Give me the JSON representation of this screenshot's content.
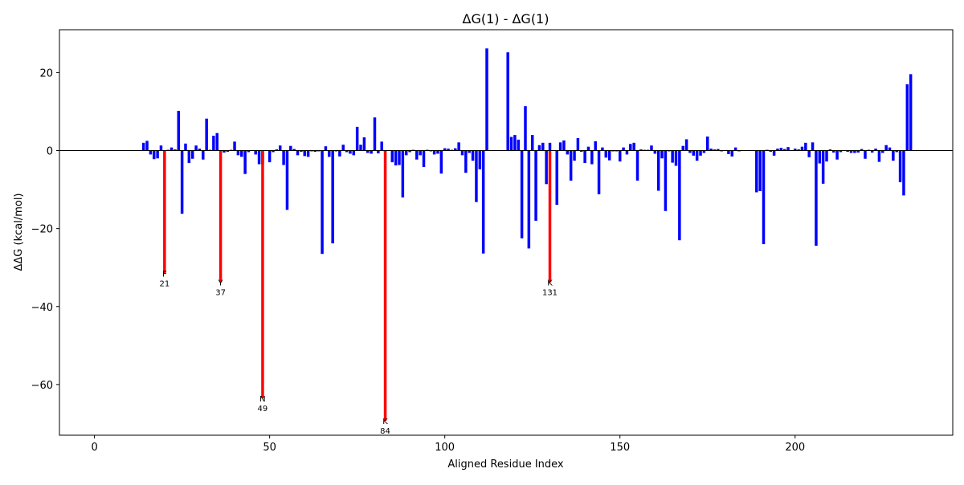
{
  "chart_data": {
    "type": "bar",
    "title": "ΔG(1) - ΔG(1)",
    "xlabel": "Aligned Residue Index",
    "ylabel": "ΔΔG (kcal/mol)",
    "xlim": [
      -10,
      245
    ],
    "ylim": [
      -73,
      31
    ],
    "xticks": [
      0,
      50,
      100,
      150,
      200
    ],
    "yticks": [
      -60,
      -40,
      -20,
      0,
      20
    ],
    "colors": {
      "default": "#0000ff",
      "highlight": "#ff0000",
      "zero_line": "#000000"
    },
    "series": [
      {
        "color": "#0000ff",
        "x": [
          14,
          15,
          16,
          17,
          18,
          19,
          21,
          22,
          23,
          24,
          25,
          26,
          27,
          28,
          29,
          30,
          31,
          32,
          33,
          34,
          35,
          37,
          38,
          39,
          40,
          41,
          42,
          43,
          44,
          45,
          46,
          47,
          48,
          50,
          51,
          52,
          53,
          54,
          55,
          56,
          57,
          58,
          59,
          60,
          61,
          62,
          63,
          64,
          65,
          66,
          67,
          68,
          69,
          70,
          71,
          72,
          73,
          74,
          75,
          76,
          77,
          78,
          79,
          80,
          81,
          82,
          83,
          85,
          86,
          87,
          88,
          89,
          90,
          91,
          92,
          93,
          94,
          95,
          96,
          97,
          98,
          99,
          100,
          101,
          102,
          103,
          104,
          105,
          106,
          107,
          108,
          109,
          110,
          111,
          112,
          118,
          119,
          120,
          121,
          122,
          123,
          124,
          125,
          126,
          127,
          128,
          129,
          130,
          132,
          133,
          134,
          135,
          136,
          137,
          138,
          139,
          140,
          141,
          142,
          143,
          144,
          145,
          146,
          147,
          148,
          149,
          150,
          151,
          152,
          153,
          154,
          155,
          156,
          157,
          158,
          159,
          160,
          161,
          162,
          163,
          164,
          165,
          166,
          167,
          168,
          169,
          170,
          171,
          172,
          173,
          174,
          175,
          176,
          177,
          178,
          179,
          180,
          181,
          182,
          183,
          184,
          185,
          189,
          190,
          191,
          192,
          193,
          194,
          195,
          196,
          197,
          198,
          199,
          200,
          201,
          202,
          203,
          204,
          205,
          206,
          207,
          208,
          209,
          210,
          211,
          212,
          213,
          214,
          215,
          216,
          217,
          218,
          219,
          220,
          221,
          222,
          223,
          224,
          225,
          226,
          227,
          228,
          229,
          230,
          231,
          232,
          233
        ],
        "y": [
          2,
          2.5,
          -1,
          -2.2,
          -2,
          1.3,
          0.2,
          0.8,
          0.3,
          10.2,
          -16.2,
          1.8,
          -3.2,
          -2.1,
          1.3,
          0.5,
          -2.3,
          8.2,
          0.2,
          3.8,
          4.5,
          -0.5,
          -0.3,
          0.2,
          2.3,
          -1.2,
          -1.6,
          -6,
          -0.4,
          0.1,
          -1,
          -3.5,
          -3.5,
          -3,
          -0.4,
          0.3,
          1.3,
          -3.7,
          -15.2,
          1.2,
          0.4,
          -1.2,
          -0.3,
          -1.4,
          -1.6,
          -0.2,
          -0.3,
          -0.2,
          -26.5,
          1.1,
          -1.6,
          -23.8,
          -0.2,
          -1.5,
          1.5,
          -0.4,
          -0.8,
          -1.2,
          6.1,
          1.5,
          3.4,
          -0.6,
          -0.8,
          8.5,
          -0.7,
          2.3,
          -0.4,
          -3,
          -3.8,
          -3.7,
          -12,
          -1.2,
          -0.4,
          0.2,
          -2.3,
          -1.2,
          -4.2,
          0.2,
          -0.2,
          -1,
          -0.8,
          -5.9,
          0.6,
          0.5,
          0.2,
          0.6,
          2.1,
          -1.2,
          -5.7,
          -0.6,
          -2.6,
          -13.2,
          -4.8,
          -26.4,
          26.2,
          25.2,
          3.5,
          4,
          2.8,
          -22.5,
          11.4,
          -25.1,
          4,
          -18,
          1.4,
          2,
          -8.6,
          2,
          -13.9,
          2.1,
          2.6,
          -1,
          -7.7,
          -2.6,
          3.2,
          -0.3,
          -3.2,
          1,
          -3.5,
          2.4,
          -11.2,
          0.8,
          -1.8,
          -2.5,
          -0.2,
          -0.2,
          -2.8,
          0.8,
          -1,
          1.7,
          2,
          -7.7,
          0.3,
          0.2,
          0.2,
          1.3,
          -0.8,
          -10.3,
          -2,
          -15.5,
          -0.2,
          -3.1,
          -3.9,
          -23,
          1.2,
          2.9,
          -0.6,
          -1.3,
          -2.6,
          -1.3,
          -0.6,
          3.6,
          0.5,
          0.3,
          0.4,
          -0.2,
          -0.1,
          -0.9,
          -1.5,
          0.8,
          -0.2,
          0.1,
          -10.7,
          -10.4,
          -24,
          0.2,
          -0.3,
          -1.3,
          0.5,
          0.7,
          0.4,
          0.9,
          -0.1,
          0.5,
          0.3,
          1,
          2,
          -1.7,
          2.1,
          -24.4,
          -3.3,
          -8.5,
          -2.8,
          0.3,
          -0.5,
          -2.3,
          -0.4,
          -0.1,
          -0.3,
          -0.6,
          -0.6,
          -0.5,
          0.4,
          -2.1,
          0.2,
          -0.5,
          0.5,
          -2.9,
          -0.6,
          1.4,
          0.8,
          -2.6,
          -0.4,
          -8.1,
          -11.5,
          17,
          19.6
        ]
      },
      {
        "color": "#ff0000",
        "x": [
          20,
          36,
          48,
          83,
          130
        ],
        "y": [
          -31.5,
          -33.8,
          -63.5,
          -69.3,
          -33.8
        ]
      }
    ],
    "annotations": [
      {
        "x": 20,
        "y": -31.5,
        "letter": "F",
        "label": "21"
      },
      {
        "x": 36,
        "y": -33.8,
        "letter": "Y",
        "label": "37"
      },
      {
        "x": 48,
        "y": -63.5,
        "letter": "N",
        "label": "49"
      },
      {
        "x": 83,
        "y": -69.3,
        "letter": "K",
        "label": "84"
      },
      {
        "x": 130,
        "y": -33.8,
        "letter": "K",
        "label": "131"
      }
    ],
    "grid": false,
    "legend": "none"
  }
}
